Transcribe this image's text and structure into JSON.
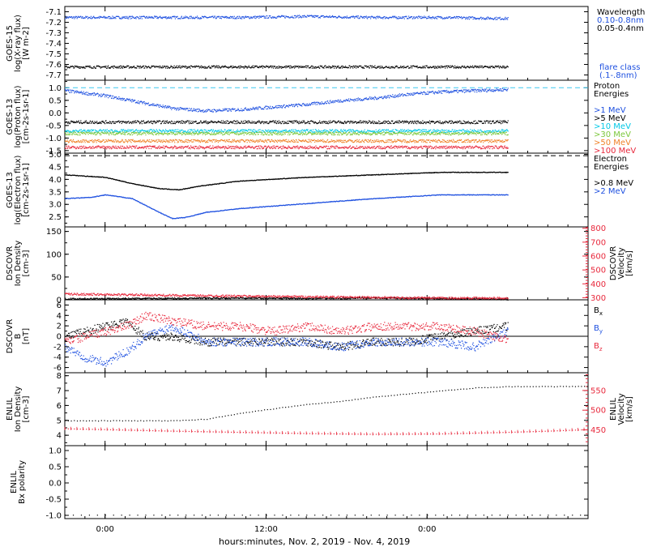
{
  "figure": {
    "xlabel": "hours:minutes, Nov.  2, 2019 - Nov.  4, 2019",
    "x_ticks": [
      "0:00",
      "12:00",
      "0:00"
    ]
  },
  "colors": {
    "black": "#000000",
    "blue": "#1e50e0",
    "lightblue": "#3c8cf0",
    "cyan": "#00c8e6",
    "green": "#7cc83c",
    "yellow": "#e6c800",
    "orange": "#f08228",
    "red": "#e8283c",
    "dash_cyan": "#3cc8f0"
  },
  "chart_data": [
    {
      "type": "scatter",
      "panel": "goes15-xray",
      "ylabel": [
        "GOES-15",
        "log(X-ray flux)",
        "[W m-2]"
      ],
      "ylim": [
        -7.75,
        -7.05
      ],
      "yticks": [
        -7.1,
        -7.2,
        -7.3,
        -7.4,
        -7.5,
        -7.6,
        -7.7
      ],
      "legend_title": "Wavelength",
      "legend": [
        {
          "label": "0.10-0.8nm",
          "color": "#1e50e0"
        },
        {
          "label": "0.05-0.4nm",
          "color": "#000000"
        }
      ],
      "note": [
        "flare class",
        "(.1-.8nm)"
      ],
      "series": [
        {
          "name": "0.10-0.8nm",
          "color": "#1e50e0",
          "x": [
            -6,
            10,
            20,
            30,
            40,
            50,
            60
          ],
          "y": [
            -7.15,
            -7.15,
            -7.15,
            -7.14,
            -7.15,
            -7.15,
            -7.16
          ]
        },
        {
          "name": "0.05-0.4nm",
          "color": "#000000",
          "x": [
            -6,
            10,
            20,
            30,
            40,
            50,
            60
          ],
          "y": [
            -7.62,
            -7.62,
            -7.62,
            -7.62,
            -7.62,
            -7.62,
            -7.62
          ]
        }
      ]
    },
    {
      "type": "scatter",
      "panel": "goes13-proton",
      "ylabel": [
        "GOES-13",
        "log(Proton flux)",
        "[cm-2s-1sr-1]"
      ],
      "ylim": [
        -1.6,
        1.3
      ],
      "yticks": [
        1.0,
        0.5,
        0.0,
        -0.5,
        -1.0,
        -1.5
      ],
      "legend_title": [
        "Proton",
        "Energies"
      ],
      "hline": 1.0,
      "legend": [
        {
          "label": ">1 MeV",
          "color": "#1e50e0"
        },
        {
          "label": ">5 MeV",
          "color": "#000000"
        },
        {
          "label": ">10 MeV",
          "color": "#00c8e6"
        },
        {
          "label": ">30 MeV",
          "color": "#7cc83c"
        },
        {
          "label": ">50 MeV",
          "color": "#f08228"
        },
        {
          "label": ">100 MeV",
          "color": "#e8283c"
        }
      ],
      "series": [
        {
          "name": ">1 MeV",
          "color": "#1e50e0",
          "x": [
            -6,
            0,
            5,
            10,
            15,
            20,
            25,
            30,
            35,
            40,
            45,
            50,
            55,
            60
          ],
          "y": [
            0.9,
            0.7,
            0.45,
            0.2,
            0.1,
            0.15,
            0.25,
            0.35,
            0.5,
            0.6,
            0.75,
            0.85,
            0.9,
            0.95
          ]
        },
        {
          "name": ">5 MeV",
          "color": "#000000",
          "x": [
            -6,
            60
          ],
          "y": [
            -0.35,
            -0.35
          ]
        },
        {
          "name": ">10 MeV",
          "color": "#00c8e6",
          "x": [
            -6,
            60
          ],
          "y": [
            -0.7,
            -0.7
          ]
        },
        {
          "name": ">30 MeV",
          "color": "#7cc83c",
          "x": [
            -6,
            60
          ],
          "y": [
            -0.8,
            -0.8
          ]
        },
        {
          "name": ">50 MeV",
          "color": "#f08228",
          "x": [
            -6,
            60
          ],
          "y": [
            -1.1,
            -1.1
          ]
        },
        {
          "name": ">100 MeV",
          "color": "#e8283c",
          "x": [
            -6,
            60
          ],
          "y": [
            -1.35,
            -1.35
          ]
        }
      ]
    },
    {
      "type": "line",
      "panel": "goes13-electron",
      "ylabel": [
        "GOES-13",
        "log(Electron flux)",
        "[cm-2s-1sr-1]"
      ],
      "ylim": [
        2.1,
        5.05
      ],
      "yticks": [
        5.0,
        4.5,
        4.0,
        3.5,
        3.0,
        2.5
      ],
      "legend_title": [
        "Electron",
        "Energies"
      ],
      "hline": 4.95,
      "legend": [
        {
          "label": ">0.8 MeV",
          "color": "#000000"
        },
        {
          "label": ">2 MeV",
          "color": "#1e50e0"
        }
      ],
      "series": [
        {
          "name": ">0.8 MeV",
          "color": "#000000",
          "x": [
            -6,
            0,
            4,
            8,
            11,
            14,
            20,
            30,
            40,
            50,
            60
          ],
          "y": [
            4.2,
            4.1,
            3.85,
            3.65,
            3.6,
            3.75,
            3.95,
            4.1,
            4.2,
            4.3,
            4.3
          ]
        },
        {
          "name": ">2 MeV",
          "color": "#1e50e0",
          "x": [
            -6,
            -2,
            0,
            4,
            8,
            10,
            12,
            15,
            20,
            30,
            40,
            50,
            60
          ],
          "y": [
            3.25,
            3.3,
            3.4,
            3.25,
            2.7,
            2.45,
            2.5,
            2.7,
            2.85,
            3.05,
            3.25,
            3.4,
            3.4
          ]
        }
      ]
    },
    {
      "type": "line",
      "panel": "dscovr-plasma",
      "ylabel": [
        "DSCOVR",
        "Ion Density",
        "[cm-3]"
      ],
      "ylim": [
        0,
        160
      ],
      "yticks": [
        150,
        100,
        50,
        0
      ],
      "y2label": [
        "DSCOVR",
        "Velocity",
        "[km/s]"
      ],
      "y2lim": [
        285,
        810
      ],
      "y2ticks": [
        800,
        700,
        600,
        500,
        400,
        300
      ],
      "series": [
        {
          "name": "density",
          "axis": "left",
          "color": "#000000",
          "x": [
            -6,
            10,
            20,
            30,
            40,
            50,
            60
          ],
          "y": [
            3,
            4,
            5,
            4,
            5,
            4,
            2
          ]
        },
        {
          "name": "velocity",
          "axis": "right",
          "color": "#e8283c",
          "x": [
            -6,
            10,
            20,
            30,
            40,
            50,
            60
          ],
          "y": [
            330,
            320,
            315,
            310,
            305,
            300,
            300
          ]
        }
      ]
    },
    {
      "type": "line",
      "panel": "dscovr-b",
      "ylabel": [
        "DSCOVR",
        "B",
        "[nT]"
      ],
      "ylim": [
        -7,
        7
      ],
      "yticks": [
        6,
        4,
        2,
        0,
        -2,
        -4,
        -6
      ],
      "hline": 0,
      "legend": [
        {
          "label": "Bx",
          "color": "#000000"
        },
        {
          "label": "By",
          "color": "#1e50e0"
        },
        {
          "label": "Bz",
          "color": "#e8283c"
        }
      ],
      "series": [
        {
          "name": "Bx",
          "color": "#000000",
          "x": [
            -6,
            -3,
            0,
            3,
            6,
            10,
            15,
            20,
            25,
            30,
            35,
            40,
            45,
            50,
            55,
            60
          ],
          "y": [
            0,
            1,
            2,
            3,
            0,
            0,
            -1,
            -1,
            -1,
            -1,
            -2,
            -1,
            -1,
            0,
            1,
            2
          ]
        },
        {
          "name": "By",
          "color": "#1e50e0",
          "x": [
            -6,
            -3,
            0,
            3,
            6,
            10,
            15,
            20,
            25,
            30,
            35,
            40,
            45,
            50,
            55,
            60
          ],
          "y": [
            -2,
            -4,
            -5,
            -3,
            0,
            2,
            -1,
            -1,
            -1,
            -1,
            -2,
            -1,
            -1,
            -1,
            -2,
            1
          ]
        },
        {
          "name": "Bz",
          "color": "#e8283c",
          "x": [
            -6,
            -3,
            0,
            3,
            6,
            10,
            15,
            20,
            25,
            30,
            35,
            40,
            45,
            50,
            55,
            60
          ],
          "y": [
            -1,
            0,
            1,
            2,
            4,
            3,
            2,
            2,
            1,
            2,
            1,
            2,
            2,
            2,
            1,
            -0.5
          ]
        }
      ]
    },
    {
      "type": "line",
      "panel": "enlil-plasma",
      "ylabel": [
        "ENLIL",
        "Ion Density",
        "[cm-3]"
      ],
      "ylim": [
        3.3,
        8.2
      ],
      "yticks": [
        8,
        7,
        6,
        5,
        4
      ],
      "y2label": [
        "ENLIL",
        "Velocity",
        "[km/s]"
      ],
      "y2lim": [
        410,
        595
      ],
      "y2ticks": [
        550,
        500,
        450
      ],
      "series": [
        {
          "name": "density",
          "axis": "left",
          "color": "#000000",
          "x": [
            -6,
            0,
            5,
            10,
            15,
            20,
            25,
            30,
            35,
            40,
            45,
            50,
            55,
            60,
            66,
            72
          ],
          "y": [
            5.0,
            5.0,
            5.0,
            5.0,
            5.1,
            5.5,
            5.8,
            6.1,
            6.3,
            6.6,
            6.8,
            7.0,
            7.2,
            7.3,
            7.3,
            7.3
          ]
        },
        {
          "name": "velocity",
          "axis": "right",
          "color": "#e8283c",
          "x": [
            -6,
            0,
            10,
            20,
            30,
            40,
            50,
            60,
            66,
            72
          ],
          "y": [
            454,
            452,
            448,
            445,
            442,
            440,
            441,
            445,
            448,
            452
          ]
        }
      ]
    },
    {
      "type": "line",
      "panel": "enlil-polarity",
      "ylabel": [
        "ENLIL",
        "Bx polarity"
      ],
      "ylim": [
        -1.1,
        1.15
      ],
      "yticks": [
        1.0,
        0.5,
        0.0,
        -0.5,
        -1.0
      ],
      "series": [
        {
          "name": "polarity",
          "color": "#000000",
          "x": [
            -6,
            72
          ],
          "y": [
            -0.98,
            -0.98
          ]
        }
      ]
    }
  ]
}
